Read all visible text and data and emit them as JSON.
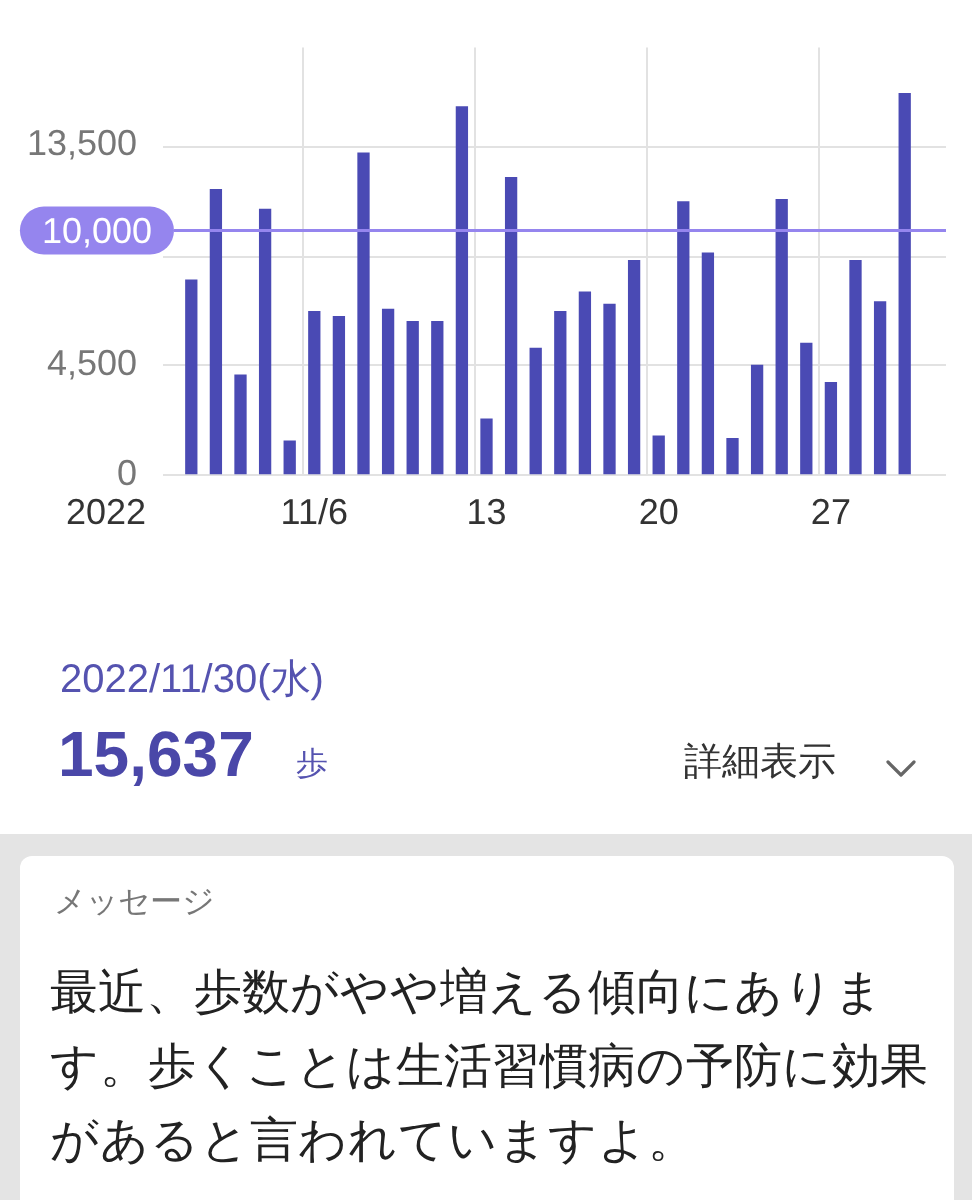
{
  "chart_data": {
    "type": "bar",
    "categories": [
      null,
      null,
      null,
      null,
      null,
      "11/6",
      null,
      null,
      null,
      null,
      null,
      null,
      "13",
      null,
      null,
      null,
      null,
      null,
      null,
      "20",
      null,
      null,
      null,
      null,
      null,
      null,
      "27",
      null,
      null,
      null
    ],
    "values": [
      8000,
      11700,
      4100,
      10900,
      1400,
      6700,
      6500,
      13200,
      6800,
      6300,
      6300,
      15100,
      2300,
      12200,
      5200,
      6700,
      7500,
      7000,
      8800,
      1600,
      11200,
      9100,
      1500,
      4500,
      11300,
      5400,
      3800,
      8800,
      7100,
      15637
    ],
    "color": "#4a4ab4",
    "xlabel": "2022",
    "ylim": [
      0,
      17500
    ],
    "yticks": [
      0,
      {
        "value": 4500,
        "label": "4,500"
      },
      {
        "value": 9000,
        "label": null
      },
      {
        "value": 13500,
        "label": "13,500"
      }
    ],
    "grid": true,
    "ref_lines": [
      {
        "axis": "y",
        "value": 10000,
        "label": "10,000",
        "color": "#9585ee"
      }
    ],
    "annotations": [
      "2022/11/30(水)",
      "15,637",
      "歩",
      "詳細表示",
      "メッセージ",
      "最近、歩数がやや増える傾向にあります。歩くことは生活習慣病の予防に効果があると言われていますよ。"
    ]
  }
}
